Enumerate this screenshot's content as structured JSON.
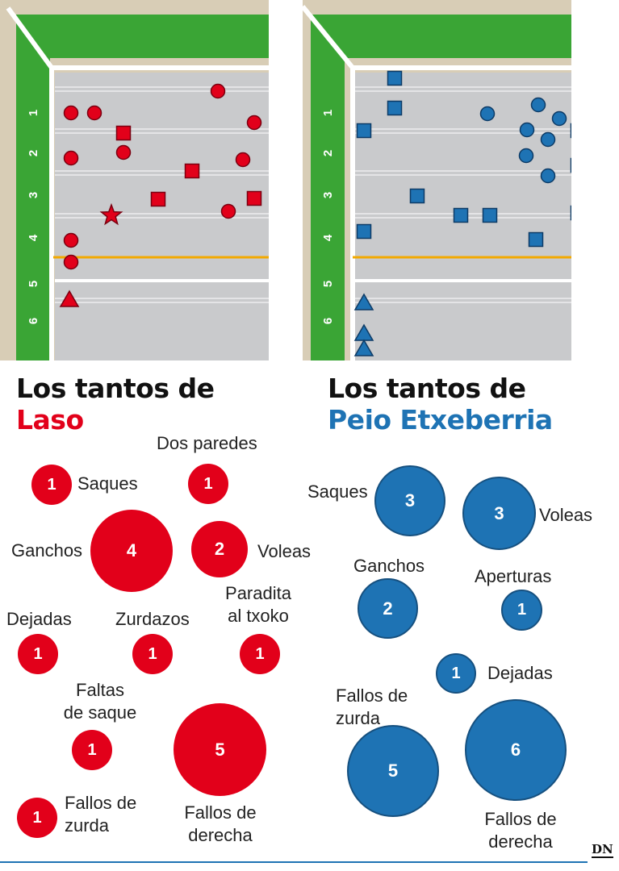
{
  "colors": {
    "laso": "#e2001a",
    "etxeberria": "#1e73b4",
    "grass": "#3aa535",
    "floor": "#c9cacc",
    "wall": "#d8cdb6",
    "mark": "#f2a900"
  },
  "court_rows": [
    "1",
    "2",
    "3",
    "4",
    "5",
    "6"
  ],
  "laso": {
    "title_line1": "Los tantos de",
    "title_line2": "Laso",
    "bubbles": [
      {
        "value": "1",
        "label": "Saques"
      },
      {
        "value": "1",
        "label": "Dos paredes"
      },
      {
        "value": "4",
        "label": "Ganchos"
      },
      {
        "value": "2",
        "label": "Voleas"
      },
      {
        "value": "1",
        "label": "Dejadas"
      },
      {
        "value": "1",
        "label": "Zurdazos"
      },
      {
        "value": "1",
        "label_line1": "Paradita",
        "label_line2": "al txoko"
      },
      {
        "value": "1",
        "label_line1": "Faltas",
        "label_line2": "de saque"
      },
      {
        "value": "5",
        "label_line1": "Fallos de",
        "label_line2": "derecha"
      },
      {
        "value": "1",
        "label_line1": "Fallos de",
        "label_line2": "zurda"
      }
    ]
  },
  "etxeberria": {
    "title_line1": "Los tantos de",
    "title_line2": "Peio Etxeberria",
    "bubbles": [
      {
        "value": "3",
        "label": "Saques"
      },
      {
        "value": "3",
        "label": "Voleas"
      },
      {
        "value": "2",
        "label": "Ganchos"
      },
      {
        "value": "1",
        "label": "Aperturas"
      },
      {
        "value": "1",
        "label": "Dejadas"
      },
      {
        "value": "5",
        "label_line1": "Fallos de",
        "label_line2": "zurda"
      },
      {
        "value": "6",
        "label_line1": "Fallos de",
        "label_line2": "derecha"
      }
    ]
  },
  "logo": "DN"
}
